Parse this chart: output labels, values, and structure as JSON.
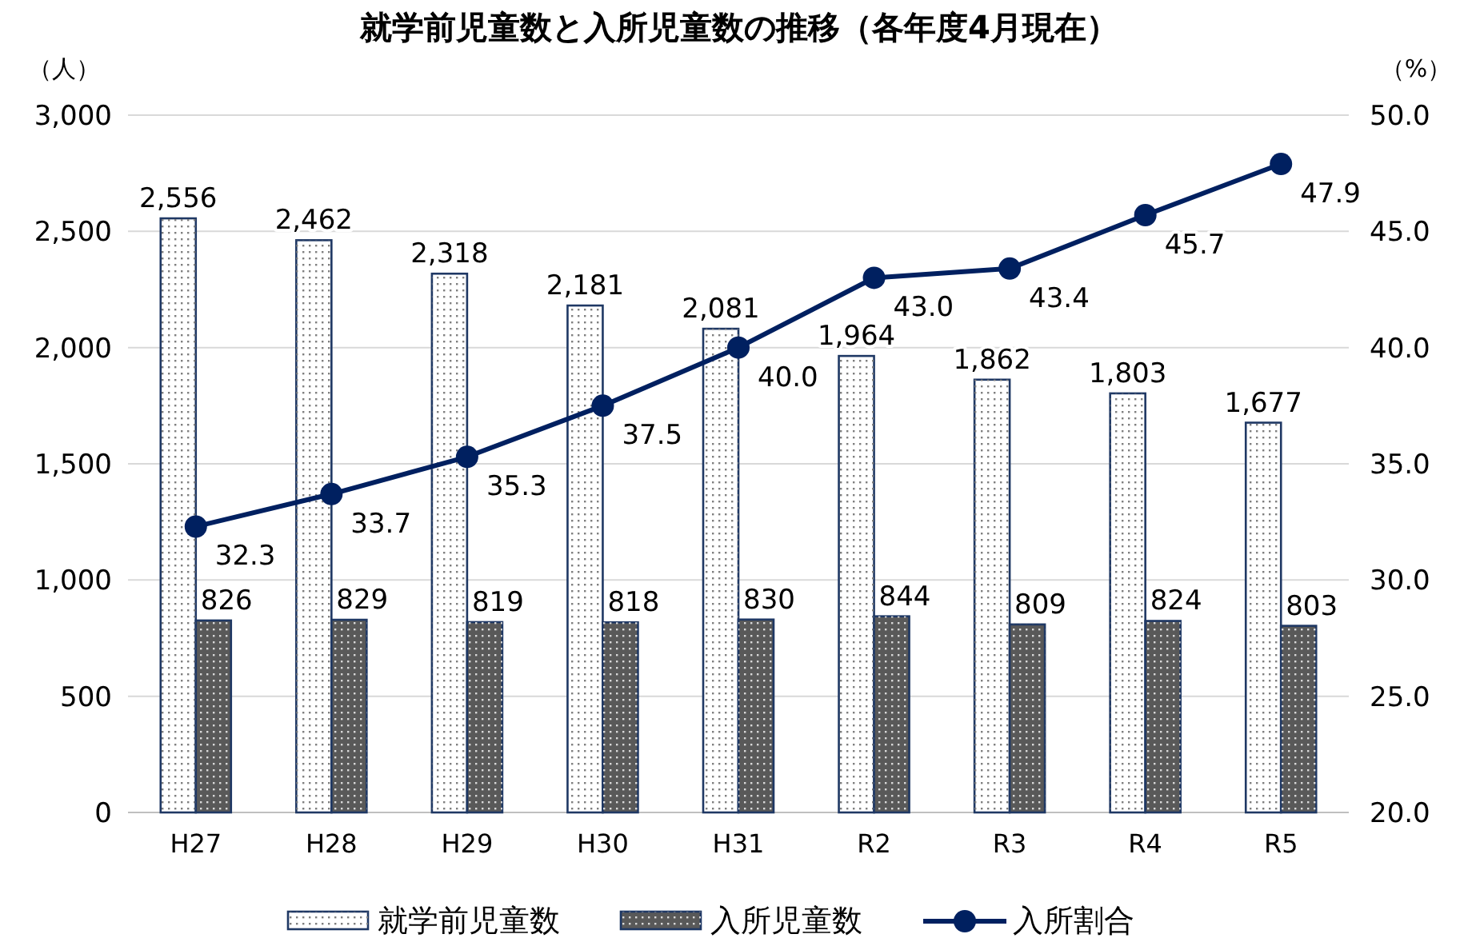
{
  "chart_data": {
    "type": "bar",
    "title": "就学前児童数と入所児童数の推移（各年度4月現在）",
    "ylabel": "（人）",
    "y2label": "（%）",
    "categories": [
      "H27",
      "H28",
      "H29",
      "H30",
      "H31",
      "R2",
      "R3",
      "R4",
      "R5"
    ],
    "series": [
      {
        "name": "就学前児童数",
        "color": "#ffffff",
        "values": [
          2556,
          2462,
          2318,
          2181,
          2081,
          1964,
          1862,
          1803,
          1677
        ],
        "value_labels": [
          "2,556",
          "2,462",
          "2,318",
          "2,181",
          "2,081",
          "1,964",
          "1,862",
          "1,803",
          "1,677"
        ]
      },
      {
        "name": "入所児童数",
        "color": "#595959",
        "values": [
          826,
          829,
          819,
          818,
          830,
          844,
          809,
          824,
          803
        ],
        "value_labels": [
          "826",
          "829",
          "819",
          "818",
          "830",
          "844",
          "809",
          "824",
          "803"
        ]
      },
      {
        "name": "入所割合",
        "type": "line",
        "axis": "y2",
        "color": "#002060",
        "marker": "circle",
        "values": [
          32.3,
          33.7,
          35.3,
          37.5,
          40.0,
          43.0,
          43.4,
          45.7,
          47.9
        ],
        "value_labels": [
          "32.3",
          "33.7",
          "35.3",
          "37.5",
          "40.0",
          "43.0",
          "43.4",
          "45.7",
          "47.9"
        ]
      }
    ],
    "ylim": [
      0,
      3000
    ],
    "yticks": [
      0,
      500,
      {
        "value": 1000,
        "label": "1,000"
      },
      {
        "value": 1500,
        "label": "1,500"
      },
      {
        "value": 2000,
        "label": "2,000"
      },
      {
        "value": 2500,
        "label": "2,500"
      },
      {
        "value": 3000,
        "label": "3,000"
      }
    ],
    "y2lim": [
      20,
      50
    ],
    "y2ticks": [
      {
        "value": 20,
        "label": "20.0"
      },
      {
        "value": 25,
        "label": "25.0"
      },
      {
        "value": 30,
        "label": "30.0"
      },
      {
        "value": 35,
        "label": "35.0"
      },
      {
        "value": 40,
        "label": "40.0"
      },
      {
        "value": 45,
        "label": "45.0"
      },
      {
        "value": 50,
        "label": "50.0"
      }
    ],
    "grid": "y",
    "legend": "bottom"
  }
}
